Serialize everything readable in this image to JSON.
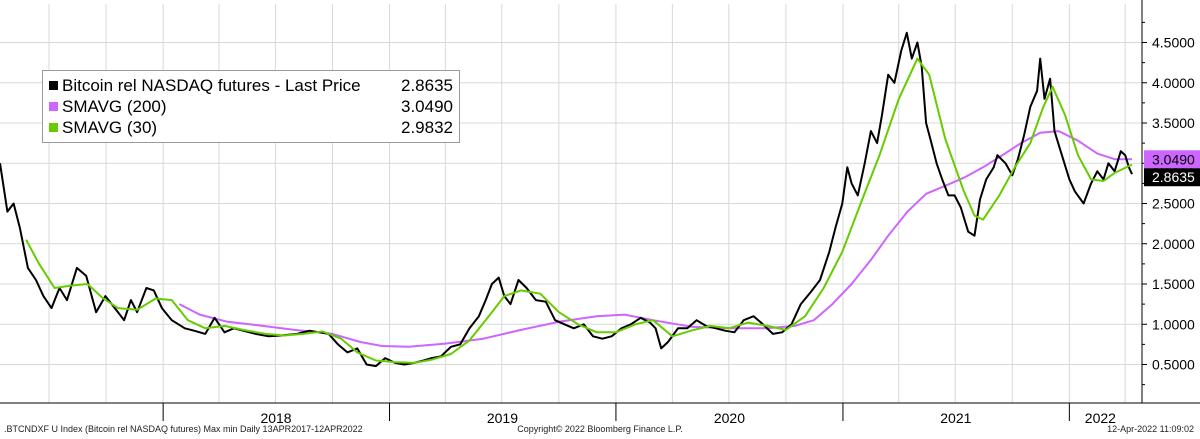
{
  "chart_data": {
    "type": "line",
    "ylim": [
      0.2,
      4.9
    ],
    "y_ticks": [
      "0.5000",
      "1.0000",
      "1.5000",
      "2.0000",
      "2.5000",
      "3.0000",
      "3.5000",
      "4.0000",
      "4.5000"
    ],
    "y_tick_values": [
      0.5,
      1.0,
      1.5,
      2.0,
      2.5,
      3.0,
      3.5,
      4.0,
      4.5
    ],
    "x_range": [
      "2017-04-13",
      "2022-04-12"
    ],
    "x_labels": [
      "2018",
      "2019",
      "2020",
      "2021",
      "2022"
    ],
    "x_label_dates": [
      "2018-07-02",
      "2019-07-02",
      "2020-07-02",
      "2021-07-02",
      "2022-02-20"
    ],
    "x_dividers": [
      "2018-01-01",
      "2019-01-01",
      "2020-01-01",
      "2021-01-01",
      "2022-01-01"
    ],
    "grid": true,
    "legend_position": "top-left",
    "series": [
      {
        "name": "Bitcoin rel NASDAQ futures - Last Price",
        "last_value": "2.8635",
        "color": "#000000",
        "points": [
          [
            "2017-04-13",
            3.0
          ],
          [
            "2017-04-25",
            2.4
          ],
          [
            "2017-05-05",
            2.5
          ],
          [
            "2017-05-15",
            2.2
          ],
          [
            "2017-05-28",
            1.7
          ],
          [
            "2017-06-10",
            1.55
          ],
          [
            "2017-06-22",
            1.35
          ],
          [
            "2017-07-05",
            1.2
          ],
          [
            "2017-07-18",
            1.45
          ],
          [
            "2017-07-30",
            1.3
          ],
          [
            "2017-08-15",
            1.7
          ],
          [
            "2017-08-30",
            1.6
          ],
          [
            "2017-09-15",
            1.15
          ],
          [
            "2017-09-30",
            1.35
          ],
          [
            "2017-10-15",
            1.2
          ],
          [
            "2017-10-30",
            1.05
          ],
          [
            "2017-11-10",
            1.3
          ],
          [
            "2017-11-20",
            1.15
          ],
          [
            "2017-12-05",
            1.45
          ],
          [
            "2017-12-17",
            1.42
          ],
          [
            "2017-12-30",
            1.2
          ],
          [
            "2018-01-15",
            1.05
          ],
          [
            "2018-02-05",
            0.95
          ],
          [
            "2018-02-20",
            0.92
          ],
          [
            "2018-03-10",
            0.88
          ],
          [
            "2018-03-25",
            1.08
          ],
          [
            "2018-04-10",
            0.9
          ],
          [
            "2018-04-25",
            0.95
          ],
          [
            "2018-05-10",
            0.92
          ],
          [
            "2018-05-30",
            0.88
          ],
          [
            "2018-06-20",
            0.85
          ],
          [
            "2018-07-10",
            0.86
          ],
          [
            "2018-08-05",
            0.88
          ],
          [
            "2018-08-25",
            0.92
          ],
          [
            "2018-09-10",
            0.9
          ],
          [
            "2018-09-25",
            0.88
          ],
          [
            "2018-10-10",
            0.75
          ],
          [
            "2018-10-25",
            0.65
          ],
          [
            "2018-11-10",
            0.7
          ],
          [
            "2018-11-25",
            0.5
          ],
          [
            "2018-12-10",
            0.48
          ],
          [
            "2018-12-25",
            0.58
          ],
          [
            "2019-01-10",
            0.52
          ],
          [
            "2019-01-25",
            0.5
          ],
          [
            "2019-02-10",
            0.52
          ],
          [
            "2019-02-25",
            0.55
          ],
          [
            "2019-03-10",
            0.58
          ],
          [
            "2019-03-25",
            0.6
          ],
          [
            "2019-04-10",
            0.72
          ],
          [
            "2019-04-25",
            0.75
          ],
          [
            "2019-05-10",
            0.95
          ],
          [
            "2019-05-25",
            1.1
          ],
          [
            "2019-06-05",
            1.3
          ],
          [
            "2019-06-15",
            1.5
          ],
          [
            "2019-06-26",
            1.58
          ],
          [
            "2019-07-05",
            1.35
          ],
          [
            "2019-07-15",
            1.25
          ],
          [
            "2019-07-28",
            1.55
          ],
          [
            "2019-08-10",
            1.45
          ],
          [
            "2019-08-25",
            1.3
          ],
          [
            "2019-09-10",
            1.28
          ],
          [
            "2019-09-25",
            1.05
          ],
          [
            "2019-10-10",
            1.0
          ],
          [
            "2019-10-25",
            0.95
          ],
          [
            "2019-11-10",
            1.0
          ],
          [
            "2019-11-25",
            0.85
          ],
          [
            "2019-12-10",
            0.82
          ],
          [
            "2019-12-25",
            0.85
          ],
          [
            "2020-01-10",
            0.95
          ],
          [
            "2020-01-25",
            1.0
          ],
          [
            "2020-02-10",
            1.08
          ],
          [
            "2020-02-25",
            1.02
          ],
          [
            "2020-03-05",
            0.95
          ],
          [
            "2020-03-14",
            0.7
          ],
          [
            "2020-03-25",
            0.78
          ],
          [
            "2020-04-10",
            0.95
          ],
          [
            "2020-04-25",
            0.95
          ],
          [
            "2020-05-10",
            1.05
          ],
          [
            "2020-05-25",
            0.98
          ],
          [
            "2020-06-10",
            0.95
          ],
          [
            "2020-06-25",
            0.92
          ],
          [
            "2020-07-10",
            0.9
          ],
          [
            "2020-07-25",
            1.05
          ],
          [
            "2020-08-10",
            1.1
          ],
          [
            "2020-08-25",
            1.0
          ],
          [
            "2020-09-10",
            0.88
          ],
          [
            "2020-09-25",
            0.9
          ],
          [
            "2020-10-10",
            1.0
          ],
          [
            "2020-10-25",
            1.25
          ],
          [
            "2020-11-10",
            1.4
          ],
          [
            "2020-11-25",
            1.55
          ],
          [
            "2020-12-10",
            1.9
          ],
          [
            "2020-12-20",
            2.2
          ],
          [
            "2020-12-31",
            2.5
          ],
          [
            "2021-01-08",
            2.95
          ],
          [
            "2021-01-15",
            2.75
          ],
          [
            "2021-01-25",
            2.6
          ],
          [
            "2021-02-05",
            3.0
          ],
          [
            "2021-02-15",
            3.4
          ],
          [
            "2021-02-25",
            3.25
          ],
          [
            "2021-03-05",
            3.6
          ],
          [
            "2021-03-15",
            4.1
          ],
          [
            "2021-03-25",
            4.0
          ],
          [
            "2021-04-05",
            4.4
          ],
          [
            "2021-04-14",
            4.62
          ],
          [
            "2021-04-22",
            4.3
          ],
          [
            "2021-05-01",
            4.5
          ],
          [
            "2021-05-08",
            4.2
          ],
          [
            "2021-05-15",
            3.5
          ],
          [
            "2021-05-22",
            3.3
          ],
          [
            "2021-06-01",
            3.0
          ],
          [
            "2021-06-10",
            2.8
          ],
          [
            "2021-06-20",
            2.6
          ],
          [
            "2021-06-30",
            2.6
          ],
          [
            "2021-07-10",
            2.45
          ],
          [
            "2021-07-22",
            2.15
          ],
          [
            "2021-08-01",
            2.1
          ],
          [
            "2021-08-10",
            2.55
          ],
          [
            "2021-08-20",
            2.8
          ],
          [
            "2021-09-01",
            2.95
          ],
          [
            "2021-09-07",
            3.1
          ],
          [
            "2021-09-20",
            3.0
          ],
          [
            "2021-10-01",
            2.85
          ],
          [
            "2021-10-10",
            3.05
          ],
          [
            "2021-10-20",
            3.35
          ],
          [
            "2021-10-30",
            3.7
          ],
          [
            "2021-11-10",
            3.9
          ],
          [
            "2021-11-15",
            4.3
          ],
          [
            "2021-11-22",
            3.8
          ],
          [
            "2021-12-01",
            4.05
          ],
          [
            "2021-12-08",
            3.4
          ],
          [
            "2021-12-20",
            3.1
          ],
          [
            "2022-01-01",
            2.8
          ],
          [
            "2022-01-10",
            2.65
          ],
          [
            "2022-01-24",
            2.5
          ],
          [
            "2022-02-05",
            2.75
          ],
          [
            "2022-02-15",
            2.9
          ],
          [
            "2022-02-25",
            2.8
          ],
          [
            "2022-03-05",
            3.0
          ],
          [
            "2022-03-15",
            2.9
          ],
          [
            "2022-03-25",
            3.15
          ],
          [
            "2022-04-01",
            3.1
          ],
          [
            "2022-04-07",
            2.95
          ],
          [
            "2022-04-12",
            2.8635
          ]
        ]
      },
      {
        "name": "SMAVG (200)",
        "last_value": "3.0490",
        "color": "#cc66ff",
        "points": [
          [
            "2018-01-27",
            1.25
          ],
          [
            "2018-03-01",
            1.12
          ],
          [
            "2018-04-15",
            1.03
          ],
          [
            "2018-06-01",
            0.99
          ],
          [
            "2018-08-01",
            0.93
          ],
          [
            "2018-10-01",
            0.88
          ],
          [
            "2018-11-15",
            0.78
          ],
          [
            "2018-12-20",
            0.73
          ],
          [
            "2019-02-01",
            0.72
          ],
          [
            "2019-04-01",
            0.76
          ],
          [
            "2019-06-01",
            0.82
          ],
          [
            "2019-08-01",
            0.93
          ],
          [
            "2019-10-01",
            1.03
          ],
          [
            "2019-12-01",
            1.1
          ],
          [
            "2020-01-15",
            1.12
          ],
          [
            "2020-03-01",
            1.05
          ],
          [
            "2020-05-01",
            0.97
          ],
          [
            "2020-07-01",
            0.95
          ],
          [
            "2020-09-01",
            0.95
          ],
          [
            "2020-10-15",
            0.98
          ],
          [
            "2020-11-15",
            1.05
          ],
          [
            "2020-12-15",
            1.25
          ],
          [
            "2021-01-15",
            1.5
          ],
          [
            "2021-02-15",
            1.8
          ],
          [
            "2021-03-15",
            2.1
          ],
          [
            "2021-04-15",
            2.4
          ],
          [
            "2021-05-15",
            2.62
          ],
          [
            "2021-06-15",
            2.72
          ],
          [
            "2021-07-15",
            2.82
          ],
          [
            "2021-08-15",
            2.95
          ],
          [
            "2021-09-15",
            3.1
          ],
          [
            "2021-10-15",
            3.25
          ],
          [
            "2021-11-15",
            3.38
          ],
          [
            "2021-12-15",
            3.4
          ],
          [
            "2022-01-15",
            3.28
          ],
          [
            "2022-02-15",
            3.12
          ],
          [
            "2022-03-15",
            3.05
          ],
          [
            "2022-04-12",
            3.049
          ]
        ]
      },
      {
        "name": "SMAVG (30)",
        "last_value": "2.9832",
        "color": "#66cc00",
        "points": [
          [
            "2017-05-25",
            2.05
          ],
          [
            "2017-06-15",
            1.75
          ],
          [
            "2017-07-10",
            1.45
          ],
          [
            "2017-08-05",
            1.48
          ],
          [
            "2017-09-01",
            1.5
          ],
          [
            "2017-09-25",
            1.33
          ],
          [
            "2017-10-20",
            1.2
          ],
          [
            "2017-11-20",
            1.18
          ],
          [
            "2017-12-20",
            1.32
          ],
          [
            "2018-01-15",
            1.3
          ],
          [
            "2018-02-10",
            1.05
          ],
          [
            "2018-03-10",
            0.95
          ],
          [
            "2018-04-10",
            0.98
          ],
          [
            "2018-05-10",
            0.93
          ],
          [
            "2018-06-15",
            0.88
          ],
          [
            "2018-07-15",
            0.86
          ],
          [
            "2018-08-15",
            0.88
          ],
          [
            "2018-09-15",
            0.91
          ],
          [
            "2018-10-15",
            0.82
          ],
          [
            "2018-11-10",
            0.65
          ],
          [
            "2018-12-10",
            0.55
          ],
          [
            "2019-01-10",
            0.53
          ],
          [
            "2019-02-10",
            0.52
          ],
          [
            "2019-03-10",
            0.56
          ],
          [
            "2019-04-10",
            0.63
          ],
          [
            "2019-05-10",
            0.8
          ],
          [
            "2019-06-10",
            1.1
          ],
          [
            "2019-07-05",
            1.35
          ],
          [
            "2019-08-01",
            1.42
          ],
          [
            "2019-09-01",
            1.38
          ],
          [
            "2019-10-01",
            1.15
          ],
          [
            "2019-11-01",
            1.0
          ],
          [
            "2019-12-01",
            0.9
          ],
          [
            "2020-01-01",
            0.9
          ],
          [
            "2020-02-01",
            1.0
          ],
          [
            "2020-03-01",
            1.05
          ],
          [
            "2020-04-01",
            0.85
          ],
          [
            "2020-05-01",
            0.92
          ],
          [
            "2020-06-01",
            0.98
          ],
          [
            "2020-07-01",
            0.95
          ],
          [
            "2020-08-01",
            1.02
          ],
          [
            "2020-09-01",
            0.98
          ],
          [
            "2020-10-01",
            0.93
          ],
          [
            "2020-11-01",
            1.1
          ],
          [
            "2020-12-01",
            1.45
          ],
          [
            "2020-12-31",
            1.9
          ],
          [
            "2021-02-01",
            2.55
          ],
          [
            "2021-03-01",
            3.1
          ],
          [
            "2021-04-01",
            3.8
          ],
          [
            "2021-05-01",
            4.3
          ],
          [
            "2021-05-20",
            4.1
          ],
          [
            "2021-06-15",
            3.3
          ],
          [
            "2021-07-15",
            2.65
          ],
          [
            "2021-08-01",
            2.35
          ],
          [
            "2021-08-15",
            2.3
          ],
          [
            "2021-09-10",
            2.6
          ],
          [
            "2021-10-05",
            2.95
          ],
          [
            "2021-10-30",
            3.25
          ],
          [
            "2021-11-20",
            3.7
          ],
          [
            "2021-12-05",
            3.95
          ],
          [
            "2021-12-25",
            3.6
          ],
          [
            "2022-01-15",
            3.1
          ],
          [
            "2022-02-05",
            2.8
          ],
          [
            "2022-02-25",
            2.78
          ],
          [
            "2022-03-15",
            2.88
          ],
          [
            "2022-04-12",
            2.9832
          ]
        ]
      }
    ]
  },
  "footer": {
    "left": ".BTCNDXF U Index (Bitcoin rel NASDAQ futures) Max min  Daily 13APR2017-12APR2022",
    "center": "Copyright© 2022 Bloomberg Finance L.P.",
    "right": "12-Apr-2022 11:09:02"
  },
  "colors": {
    "grid": "#d8d8d8",
    "price": "#000000",
    "sma200": "#cc66ff",
    "sma30": "#66cc00",
    "sma200_label_bg": "#cc66ff",
    "price_label_bg": "#000000"
  }
}
